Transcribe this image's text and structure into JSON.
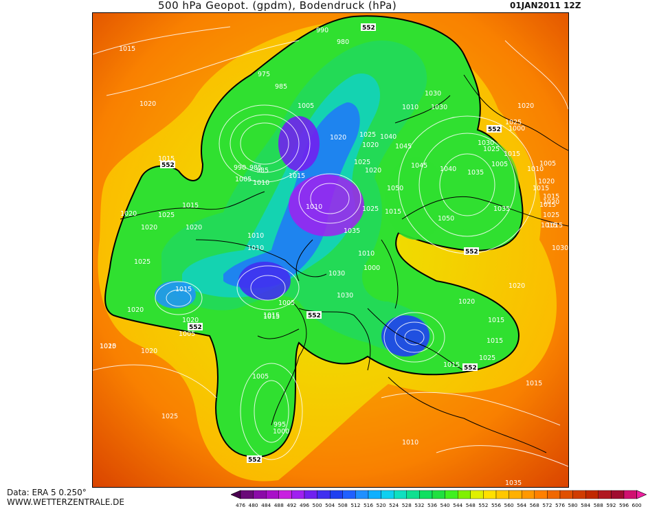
{
  "header": {
    "title": "500 hPa Geopot. (gpdm), Bodendruck (hPa)",
    "date": "01JAN2011 12Z"
  },
  "footer": {
    "data_source": "Data: ERA 5 0.250°",
    "website": "WWW.WETTERZENTRALE.DE"
  },
  "colorbar": {
    "ticks": [
      "476",
      "480",
      "484",
      "488",
      "492",
      "496",
      "500",
      "504",
      "508",
      "512",
      "516",
      "520",
      "524",
      "528",
      "532",
      "536",
      "540",
      "544",
      "548",
      "552",
      "556",
      "560",
      "564",
      "568",
      "572",
      "576",
      "580",
      "584",
      "588",
      "592",
      "596",
      "600"
    ],
    "colors": [
      "#4a0050",
      "#6a0a78",
      "#8b0aa8",
      "#a810c8",
      "#c820e0",
      "#a020f0",
      "#7020f0",
      "#4030f0",
      "#2040f0",
      "#2060ff",
      "#2090ff",
      "#10b0ff",
      "#10d0f0",
      "#10e0c0",
      "#10e090",
      "#10e060",
      "#20e040",
      "#40f020",
      "#80f000",
      "#e0f000",
      "#ffe000",
      "#ffc800",
      "#ffb000",
      "#ff9800",
      "#ff8000",
      "#f06800",
      "#e05000",
      "#d03c00",
      "#c02800",
      "#b01820",
      "#a00c30",
      "#d01070",
      "#f020a0"
    ]
  },
  "map": {
    "geopotential_labels": [
      {
        "value": "552"
      },
      {
        "value": "552"
      },
      {
        "value": "552"
      },
      {
        "value": "552"
      },
      {
        "value": "552"
      },
      {
        "value": "552"
      },
      {
        "value": "552"
      },
      {
        "value": "552"
      }
    ],
    "pressure_labels": [
      "1015",
      "1020",
      "1015",
      "1020",
      "1020",
      "1025",
      "1015",
      "1020",
      "1025",
      "1020",
      "1015",
      "1020",
      "1005",
      "1020",
      "1020",
      "1025",
      "1015",
      "1010",
      "975",
      "985",
      "990",
      "985",
      "980",
      "990",
      "985",
      "1005",
      "1005",
      "1010",
      "1015",
      "1010",
      "1010",
      "1005",
      "1015",
      "1015",
      "1005",
      "995",
      "1000",
      "1020",
      "1025",
      "1010",
      "1030",
      "1030",
      "1020",
      "1025",
      "1020",
      "1040",
      "1045",
      "1045",
      "1040",
      "1035",
      "1050",
      "1050",
      "1035",
      "1030",
      "1035",
      "1025",
      "1015",
      "1010",
      "1000",
      "1030",
      "1020",
      "1015",
      "1015",
      "1015",
      "1025",
      "1020",
      "1000",
      "1025",
      "1015",
      "1005",
      "1015",
      "1015",
      "1020",
      "1025",
      "1015",
      "1015",
      "1020",
      "1015",
      "1010",
      "1035",
      "1030",
      "1025",
      "1005",
      "1010",
      "1020",
      "1015",
      "1030"
    ]
  }
}
